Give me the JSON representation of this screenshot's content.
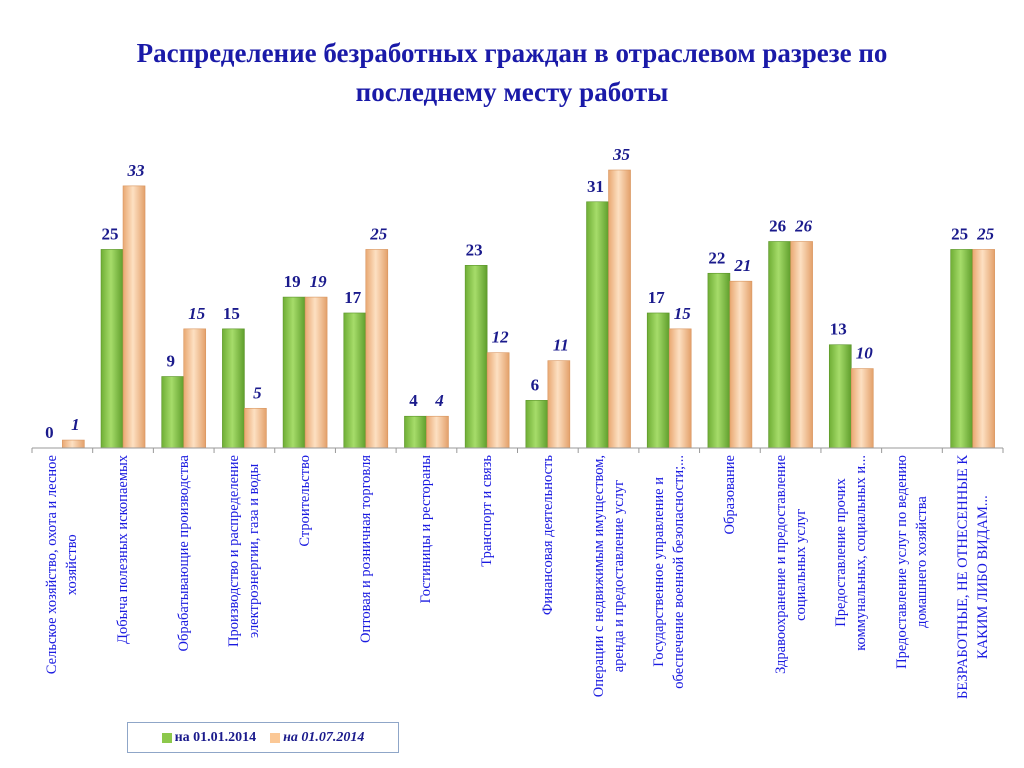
{
  "chart_data": {
    "type": "bar",
    "title": [
      "Распределение безработных граждан в отраслевом разрезе по",
      "последнему месту работы"
    ],
    "categories": [
      [
        "Сельское хозяйство, охота и лесное",
        "хозяйство"
      ],
      [
        "Добыча полезных ископаемых"
      ],
      [
        "Обрабатывающие производства"
      ],
      [
        "Производство и распределение",
        "электроэнергии, газа и воды"
      ],
      [
        "Строительство"
      ],
      [
        "Оптовая и розничная торговля"
      ],
      [
        "Гостиницы и рестораны"
      ],
      [
        "Транспорт и связь"
      ],
      [
        "Финансовая деятельность"
      ],
      [
        "Операции с недвижимым имуществом,",
        "аренда и предоставление услуг"
      ],
      [
        "Государственное управление и",
        "обеспечение военной безопасности;..."
      ],
      [
        "Образование"
      ],
      [
        "Здравоохранение и предоставление",
        "социальных услуг"
      ],
      [
        "Предоставление прочих",
        "коммунальных, социальных и..."
      ],
      [
        "Предоставление услуг по ведению",
        "домашнего хозяйства"
      ],
      [
        "БЕЗРАБОТНЫЕ, НЕ ОТНЕСЕННЫЕ К",
        "КАКИМ ЛИБО ВИДАМ..."
      ]
    ],
    "series": [
      {
        "name": "на 01.01.2014",
        "color": "#8cc84b",
        "values": [
          0,
          25,
          9,
          15,
          19,
          17,
          4,
          23,
          6,
          31,
          17,
          22,
          26,
          13,
          null,
          25
        ]
      },
      {
        "name": "на 01.07.2014",
        "color": "#fbc896",
        "values": [
          1,
          33,
          15,
          5,
          19,
          25,
          4,
          12,
          11,
          35,
          15,
          21,
          26,
          10,
          null,
          25
        ]
      }
    ],
    "ylim": [
      0,
      35
    ],
    "grid": false,
    "legend": "bottom-left"
  }
}
